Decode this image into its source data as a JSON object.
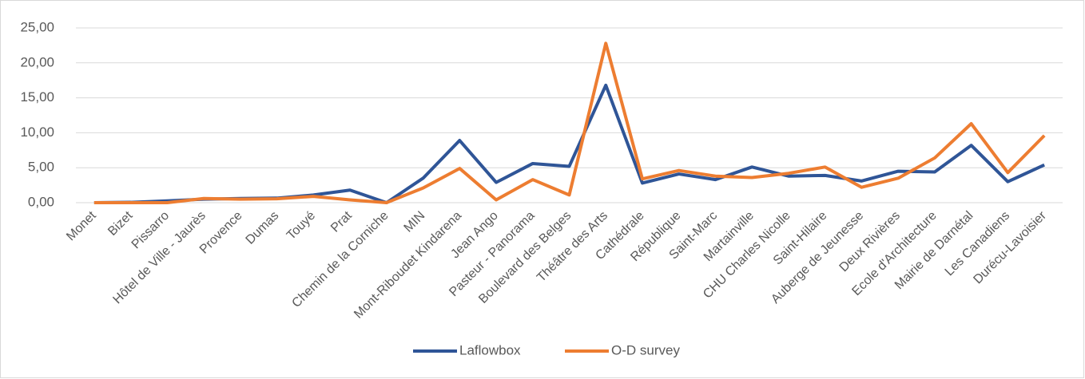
{
  "chart_data": {
    "type": "line",
    "categories": [
      "Monet",
      "Bizet",
      "Pissarro",
      "Hôtel de Ville - Jaurès",
      "Provence",
      "Dumas",
      "Touyé",
      "Prat",
      "Chemin de la Corniche",
      "MIN",
      "Mont-Riboudet Kindarena",
      "Jean Ango",
      "Pasteur - Panorama",
      "Boulevard des Belges",
      "Théâtre des Arts",
      "Cathédrale",
      "République",
      "Saint-Marc",
      "Martainville",
      "CHU Charles Nicolle",
      "Saint-Hilaire",
      "Auberge de Jeunesse",
      "Deux Rivières",
      "Ecole d'Architecture",
      "Mairie de Darnétal",
      "Les Canadiens",
      "Durécu-Lavoisier"
    ],
    "series": [
      {
        "name": "Laflowbox",
        "color": "#2f5597",
        "values": [
          0,
          0.05,
          0.25,
          0.5,
          0.6,
          0.65,
          1.1,
          1.8,
          0,
          3.5,
          8.9,
          2.9,
          5.6,
          5.2,
          16.8,
          2.8,
          4.1,
          3.3,
          5.1,
          3.8,
          3.9,
          3.1,
          4.5,
          4.4,
          8.2,
          3.0,
          5.4
        ]
      },
      {
        "name": "O-D survey",
        "color": "#ed7d31",
        "values": [
          0,
          0,
          0,
          0.6,
          0.5,
          0.55,
          0.9,
          0.4,
          0,
          2.1,
          4.9,
          0.4,
          3.3,
          1.1,
          22.8,
          3.4,
          4.6,
          3.8,
          3.6,
          4.2,
          5.1,
          2.2,
          3.5,
          6.4,
          11.3,
          4.3,
          9.6
        ]
      }
    ],
    "ylim": [
      0,
      25
    ],
    "yticks": [
      {
        "value": 0,
        "label": "0,00"
      },
      {
        "value": 5,
        "label": "5,00"
      },
      {
        "value": 10,
        "label": "10,00"
      },
      {
        "value": 15,
        "label": "15,00"
      },
      {
        "value": 20,
        "label": "20,00"
      },
      {
        "value": 25,
        "label": "25,00"
      }
    ],
    "grid": true,
    "legend": "bottom"
  }
}
